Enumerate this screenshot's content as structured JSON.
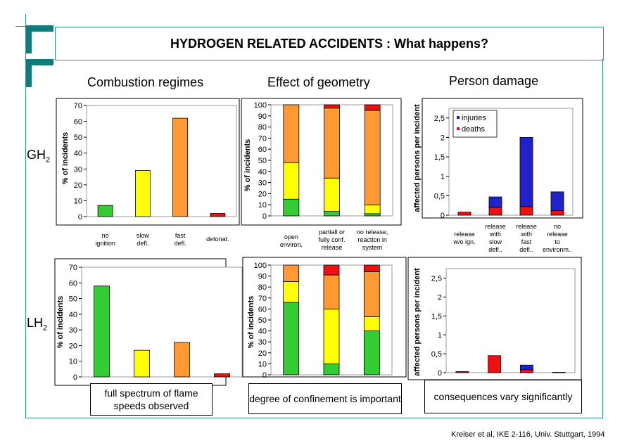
{
  "title": "HYDROGEN RELATED ACCIDENTS : What happens?",
  "column_titles": [
    "Combustion regimes",
    "Effect of geometry",
    "Person damage"
  ],
  "row_labels": [
    {
      "main": "GH",
      "sub": "2"
    },
    {
      "main": "LH",
      "sub": "2"
    }
  ],
  "notes": {
    "lh2_combustion": "full spectrum of flame speeds observed",
    "lh2_geometry": "degree of confinement is important",
    "lh2_person": "consequences vary significantly"
  },
  "credit": "Kreiser et al, IKE 2-116, Univ. Stuttgart, 1994",
  "colors": {
    "green": "#33cc33",
    "yellow": "#ffff00",
    "orange": "#ff9933",
    "red": "#ee1111",
    "blue": "#2222cc",
    "accent": "#0f7b7b"
  },
  "chart_data": [
    {
      "id": "gh2-combustion",
      "type": "bar",
      "ylabel": "% of incidents",
      "ylim": [
        0,
        70
      ],
      "yticks": [
        "0",
        "10",
        "20",
        "30",
        "40",
        "50",
        "60",
        "70"
      ],
      "categories": [
        [
          "no",
          "ignition"
        ],
        [
          "slow",
          "defl."
        ],
        [
          "fast",
          "defl."
        ],
        [
          "detonat."
        ]
      ],
      "values": [
        7,
        29,
        62,
        2
      ],
      "bar_colors": [
        "#33cc33",
        "#ffff00",
        "#ff9933",
        "#ee1111"
      ]
    },
    {
      "id": "gh2-geometry",
      "type": "bar",
      "stacked": true,
      "ylabel": "% of incidents",
      "ylim": [
        0,
        100
      ],
      "yticks": [
        "0",
        "10",
        "20",
        "30",
        "40",
        "50",
        "60",
        "70",
        "80",
        "90",
        "100"
      ],
      "categories": [
        [
          "open",
          "environ."
        ],
        [
          "partiall or",
          "fully conf.",
          "release"
        ],
        [
          "no release,",
          "reaction in",
          "system"
        ]
      ],
      "stacks": [
        [
          15,
          33,
          52,
          0
        ],
        [
          4,
          30,
          63,
          3
        ],
        [
          2,
          8,
          85,
          5
        ]
      ],
      "stack_colors": [
        "#33cc33",
        "#ffff00",
        "#ff9933",
        "#ee1111"
      ]
    },
    {
      "id": "gh2-person",
      "type": "bar",
      "stacked": true,
      "ylabel": "affected persons per incident",
      "ylim": [
        0,
        2.75
      ],
      "yticks": [
        "0",
        "0,5",
        "1",
        "1,5",
        "2",
        "2,5"
      ],
      "categories": [
        [
          "release",
          "w/o ign."
        ],
        [
          "release",
          "with",
          "slow",
          "defl.."
        ],
        [
          "release",
          "with",
          "fast",
          "defl.."
        ],
        [
          "no",
          "release",
          "to",
          "environm.."
        ]
      ],
      "series": [
        {
          "name": "deaths",
          "values": [
            0.08,
            0.2,
            0.22,
            0.12
          ]
        },
        {
          "name": "injuries",
          "values": [
            0,
            0.27,
            1.78,
            0.48
          ]
        }
      ],
      "legend": {
        "position": "top-left",
        "entries": [
          "injuries",
          "deaths"
        ]
      }
    },
    {
      "id": "lh2-combustion",
      "type": "bar",
      "ylabel": "% of incidents",
      "ylim": [
        0,
        70
      ],
      "yticks": [
        "0",
        "10",
        "20",
        "30",
        "40",
        "50",
        "60",
        "70"
      ],
      "values": [
        58,
        17,
        22,
        2
      ],
      "bar_colors": [
        "#33cc33",
        "#ffff00",
        "#ff9933",
        "#ee1111"
      ]
    },
    {
      "id": "lh2-geometry",
      "type": "bar",
      "stacked": true,
      "ylabel": "% of incidents",
      "ylim": [
        0,
        100
      ],
      "yticks": [
        "0",
        "10",
        "20",
        "30",
        "40",
        "50",
        "60",
        "70",
        "80",
        "90",
        "100"
      ],
      "stacks": [
        [
          66,
          19,
          15,
          0
        ],
        [
          10,
          50,
          31,
          9
        ],
        [
          40,
          13,
          41,
          6
        ]
      ],
      "stack_colors": [
        "#33cc33",
        "#ffff00",
        "#ff9933",
        "#ee1111"
      ]
    },
    {
      "id": "lh2-person",
      "type": "bar",
      "stacked": true,
      "ylabel": "affected persons per incident",
      "ylim": [
        0,
        2.75
      ],
      "yticks": [
        "0",
        "0,5",
        "1",
        "1,5",
        "2",
        "2,5"
      ],
      "series": [
        {
          "name": "deaths",
          "values": [
            0.03,
            0.45,
            0.08,
            0
          ]
        },
        {
          "name": "injuries",
          "values": [
            0,
            0,
            0.12,
            0.01
          ]
        }
      ]
    }
  ]
}
